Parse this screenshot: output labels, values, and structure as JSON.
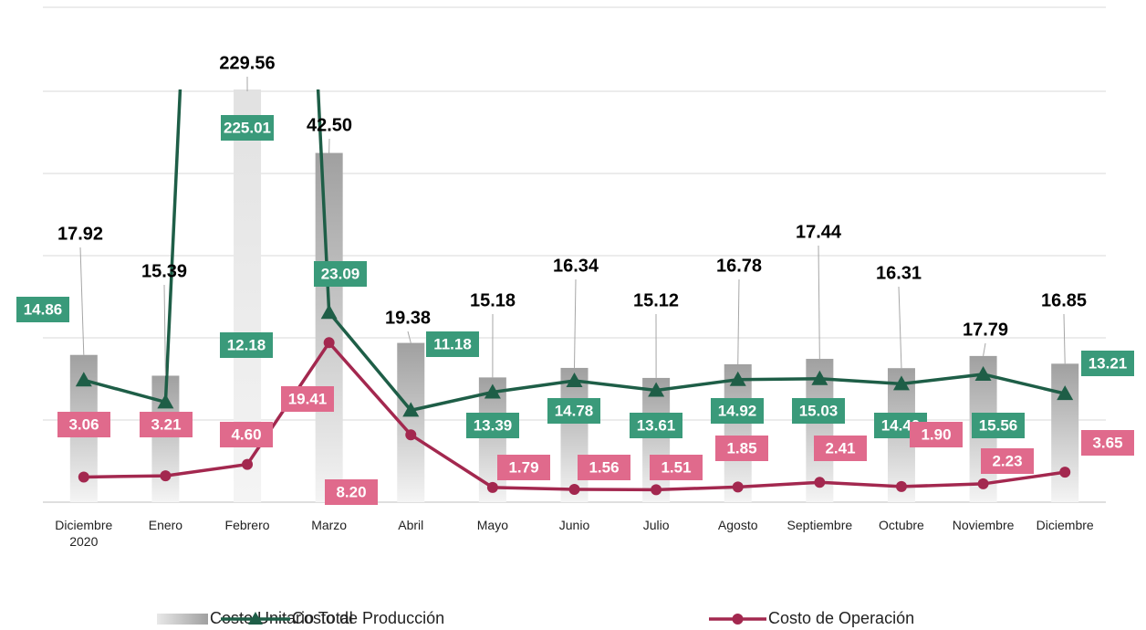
{
  "chart_data": {
    "type": "bar_line",
    "categories": [
      "Diciembre 2020",
      "Enero",
      "Febrero",
      "Marzo",
      "Abril",
      "Mayo",
      "Junio",
      "Julio",
      "Agosto",
      "Septiembre",
      "Octubre",
      "Noviembre",
      "Diciembre"
    ],
    "series": [
      {
        "name": "Costo Unitario Total",
        "type": "bar",
        "color": "#a6a6a6",
        "values": [
          17.92,
          15.39,
          229.56,
          42.5,
          19.38,
          15.18,
          16.34,
          15.12,
          16.78,
          17.44,
          16.31,
          17.79,
          16.85
        ],
        "value_labels": [
          "17.92",
          "15.39",
          "229.56",
          "42.50",
          "19.38",
          "15.18",
          "16.34",
          "15.12",
          "16.78",
          "17.44",
          "16.31",
          "17.79",
          "16.85"
        ]
      },
      {
        "name": "Costo de Producción",
        "type": "line",
        "color": "#1e5e47",
        "label_color": "#3a9a7a",
        "values": [
          14.86,
          12.18,
          225.01,
          23.09,
          11.18,
          13.39,
          14.78,
          13.61,
          14.92,
          15.03,
          14.4,
          15.56,
          13.21
        ],
        "value_labels": [
          "14.86",
          "12.18",
          "225.01",
          "23.09",
          "11.18",
          "13.39",
          "14.78",
          "13.61",
          "14.92",
          "15.03",
          "14.40",
          "15.56",
          "13.21"
        ]
      },
      {
        "name": "Costo de Operación",
        "type": "line",
        "color": "#a3284f",
        "label_color": "#e06a8c",
        "values": [
          3.06,
          3.21,
          4.6,
          19.41,
          8.2,
          1.79,
          1.56,
          1.51,
          1.85,
          2.41,
          1.9,
          2.23,
          3.65
        ],
        "value_labels": [
          "3.06",
          "3.21",
          "4.60",
          "19.41",
          "8.20",
          "1.79",
          "1.56",
          "1.51",
          "1.85",
          "2.41",
          "1.90",
          "2.23",
          "3.65"
        ]
      }
    ],
    "ylim": [
      0,
      50
    ],
    "yticks": [
      0,
      10,
      20,
      30,
      40,
      50
    ],
    "grid": true
  }
}
